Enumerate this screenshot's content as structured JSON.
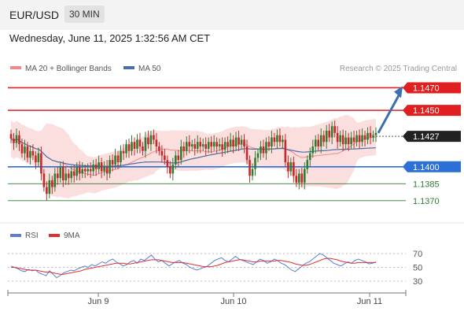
{
  "header": {
    "pair": "EUR/USD",
    "timeframe": "30 MIN"
  },
  "datetime": "Wednesday, June 11, 2025 1:32:56 AM CET",
  "legend": {
    "bb": "MA 20 + Bollinger Bands",
    "ma50": "MA 50",
    "credit": "Research © 2025 Trading Central"
  },
  "rsi_legend": {
    "rsi": "RSI",
    "ma": "9MA"
  },
  "colors": {
    "resistance": "#e02020",
    "support": "#2c6fd6",
    "target": "#3a6fb0",
    "candle_up": "#2e7d32",
    "candle_down": "#c62828",
    "band": "#f7c5c5",
    "ma20": "#f08a8a",
    "ma50": "#4a6fa5",
    "rsi": "#5b7fd6",
    "rsi_ma": "#e03030"
  },
  "chart_data": {
    "type": "candlestick",
    "price_range": [
      1.1358,
      1.1478
    ],
    "x_ticks": [
      "Jun 9",
      "Jun 10",
      "Jun 11"
    ],
    "levels": [
      {
        "value": 1.147,
        "label": "1.1470",
        "kind": "resistance"
      },
      {
        "value": 1.145,
        "label": "1.1450",
        "kind": "resistance"
      },
      {
        "value": 1.1427,
        "label": "1.1427",
        "kind": "current"
      },
      {
        "value": 1.14,
        "label": "1.1400",
        "kind": "pivot"
      },
      {
        "value": 1.1385,
        "label": "1.1385",
        "kind": "support"
      },
      {
        "value": 1.137,
        "label": "1.1370",
        "kind": "support"
      }
    ],
    "closes": [
      1.1425,
      1.1421,
      1.1428,
      1.142,
      1.1412,
      1.1418,
      1.1408,
      1.1414,
      1.141,
      1.1404,
      1.1412,
      1.1394,
      1.1382,
      1.1376,
      1.1388,
      1.1382,
      1.1394,
      1.139,
      1.14,
      1.1388,
      1.1394,
      1.139,
      1.1396,
      1.1392,
      1.14,
      1.1394,
      1.1398,
      1.1396,
      1.1398,
      1.1396,
      1.1402,
      1.1398,
      1.1404,
      1.1396,
      1.14,
      1.1394,
      1.1406,
      1.1402,
      1.141,
      1.1404,
      1.1414,
      1.1412,
      1.142,
      1.1414,
      1.1422,
      1.1416,
      1.1424,
      1.1418,
      1.1414,
      1.1426,
      1.142,
      1.1428,
      1.1424,
      1.1418,
      1.1414,
      1.141,
      1.1406,
      1.14,
      1.1394,
      1.1402,
      1.141,
      1.1406,
      1.1418,
      1.1414,
      1.1422,
      1.1418,
      1.142,
      1.1416,
      1.1422,
      1.1418,
      1.142,
      1.1416,
      1.1422,
      1.1418,
      1.1422,
      1.1418,
      1.142,
      1.1415,
      1.1422,
      1.1418,
      1.1424,
      1.1418,
      1.1426,
      1.142,
      1.1424,
      1.1418,
      1.1406,
      1.1392,
      1.1398,
      1.1408,
      1.1412,
      1.1418,
      1.1412,
      1.1422,
      1.1418,
      1.1426,
      1.1422,
      1.1428,
      1.1422,
      1.1424,
      1.1404,
      1.1396,
      1.1404,
      1.1392,
      1.1386,
      1.1394,
      1.1386,
      1.1398,
      1.1406,
      1.1412,
      1.1418,
      1.1424,
      1.1418,
      1.1428,
      1.1422,
      1.1432,
      1.1426,
      1.1436,
      1.143,
      1.1422,
      1.1428,
      1.142,
      1.1426,
      1.142,
      1.1426,
      1.1422,
      1.1428,
      1.1422,
      1.1428,
      1.1424,
      1.143,
      1.1426,
      1.1428,
      1.143
    ],
    "rsi_ticks": [
      70,
      50,
      30
    ],
    "rsi": [
      52,
      50,
      48,
      45,
      44,
      47,
      45,
      46,
      42,
      40,
      38,
      45,
      40,
      35,
      38,
      42,
      44,
      46,
      45,
      48,
      50,
      52,
      50,
      54,
      52,
      55,
      58,
      56,
      60,
      62,
      58,
      55,
      52,
      54,
      58,
      60,
      56,
      62,
      60,
      64,
      68,
      62,
      58,
      60,
      56,
      52,
      55,
      58,
      60,
      56,
      54,
      50,
      48,
      46,
      48,
      50,
      52,
      56,
      60,
      62,
      64,
      60,
      58,
      62,
      66,
      62,
      60,
      58,
      56,
      54,
      58,
      62,
      60,
      56,
      58,
      62,
      60,
      56,
      54,
      50,
      46,
      44,
      48,
      52,
      56,
      58,
      62,
      66,
      70,
      68,
      64,
      60,
      56,
      54,
      52,
      55,
      58,
      56,
      60,
      62,
      60,
      58,
      55,
      56,
      58
    ],
    "rsi_ma": [
      50,
      50,
      49,
      48,
      47,
      46,
      46,
      46,
      45,
      44,
      43,
      43,
      42,
      41,
      40,
      40,
      41,
      42,
      43,
      44,
      45,
      47,
      48,
      49,
      50,
      51,
      52,
      53,
      54,
      55,
      56,
      56,
      56,
      55,
      55,
      56,
      57,
      58,
      59,
      60,
      61,
      61,
      61,
      60,
      59,
      58,
      57,
      57,
      57,
      57,
      56,
      55,
      54,
      53,
      52,
      51,
      51,
      51,
      52,
      53,
      55,
      57,
      58,
      59,
      60,
      61,
      61,
      60,
      59,
      58,
      58,
      59,
      59,
      59,
      59,
      59,
      60,
      60,
      59,
      58,
      57,
      55,
      54,
      53,
      53,
      54,
      56,
      58,
      60,
      62,
      63,
      63,
      62,
      61,
      59,
      58,
      57,
      56,
      56,
      57,
      57,
      57,
      57,
      57,
      57
    ]
  }
}
